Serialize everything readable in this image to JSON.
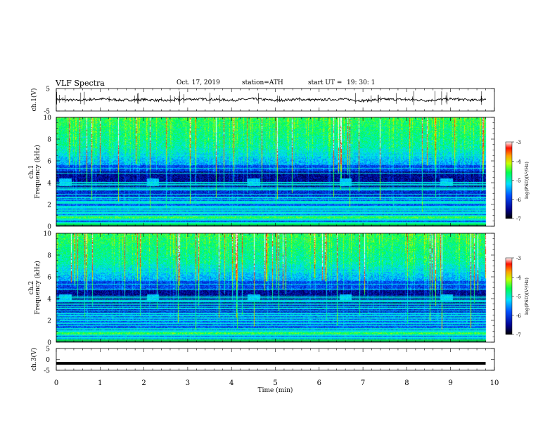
{
  "header": {
    "title": "VLF  Spectra",
    "date": "Oct. 17, 2019",
    "station": "station=ATH",
    "start_label": "start  UT  =",
    "start_time": "19: 30: 1"
  },
  "colors": {
    "spectrum_low": "#00007f",
    "spectrum_mid": "#00e8ff",
    "spectrum_high": "#ff2000",
    "waveform": "#000000"
  },
  "chart_data": [
    {
      "type": "line",
      "panel": "ch1-waveform",
      "ylabel": "ch.1(V)",
      "ylim": [
        -5,
        5
      ],
      "yticks": [
        "5",
        "-5"
      ],
      "x": [
        0,
        0.5,
        1,
        1.5,
        2,
        2.5,
        3,
        3.5,
        4,
        4.5,
        5,
        5.5,
        6,
        6.5,
        7,
        7.5,
        8,
        8.5,
        9,
        9.5,
        9.8
      ],
      "y": [
        0.2,
        -0.3,
        0.4,
        -0.2,
        0.1,
        -0.4,
        0.3,
        0.2,
        -0.2,
        0.4,
        -0.3,
        0.2,
        -0.1,
        0.3,
        -0.4,
        0.2,
        0.1,
        -0.3,
        0.4,
        -0.2,
        0.3
      ]
    },
    {
      "type": "heatmap",
      "panel": "ch1-spectrogram",
      "ylabel": "ch.1\nFrequency  (kHz)",
      "ylim": [
        0,
        10
      ],
      "yticks": [
        "0",
        "2",
        "4",
        "6",
        "8",
        "10"
      ],
      "xlim": [
        0,
        9.8
      ],
      "colorbar": {
        "label": "log(PSD)(V²/Hz)",
        "ticks": [
          "-3",
          "-4",
          "-5",
          "-6",
          "-7"
        ],
        "range": [
          -7,
          -3
        ]
      },
      "quiet_band_khz": [
        3.5,
        5.0
      ],
      "bright_patches_min": [
        0.2,
        2.2,
        4.5,
        6.6,
        8.9
      ]
    },
    {
      "type": "heatmap",
      "panel": "ch2-spectrogram",
      "ylabel": "ch.2\nFrequency  (kHz)",
      "ylim": [
        0,
        10
      ],
      "yticks": [
        "0",
        "2",
        "4",
        "6",
        "8",
        "10"
      ],
      "xlim": [
        0,
        9.8
      ],
      "colorbar": {
        "label": "log(PSD)(V²/Hz)",
        "ticks": [
          "-3",
          "-4",
          "-5",
          "-6",
          "-7"
        ],
        "range": [
          -7,
          -3
        ]
      },
      "quiet_band_khz": [
        3.5,
        4.8
      ],
      "bright_patches_min": [
        0.2,
        2.2,
        4.5,
        6.6,
        8.9
      ]
    },
    {
      "type": "line",
      "panel": "ch3-waveform",
      "ylabel": "ch.3(V)",
      "ylim": [
        -5,
        5
      ],
      "yticks": [
        "5",
        "0",
        "-5"
      ],
      "x": [
        0,
        9.8
      ],
      "y": [
        -1.8,
        -1.8
      ]
    }
  ],
  "xaxis": {
    "label": "Time  (min)",
    "ticks": [
      "0",
      "1",
      "2",
      "3",
      "4",
      "5",
      "6",
      "7",
      "8",
      "9",
      "10"
    ],
    "range": [
      0,
      10
    ]
  }
}
